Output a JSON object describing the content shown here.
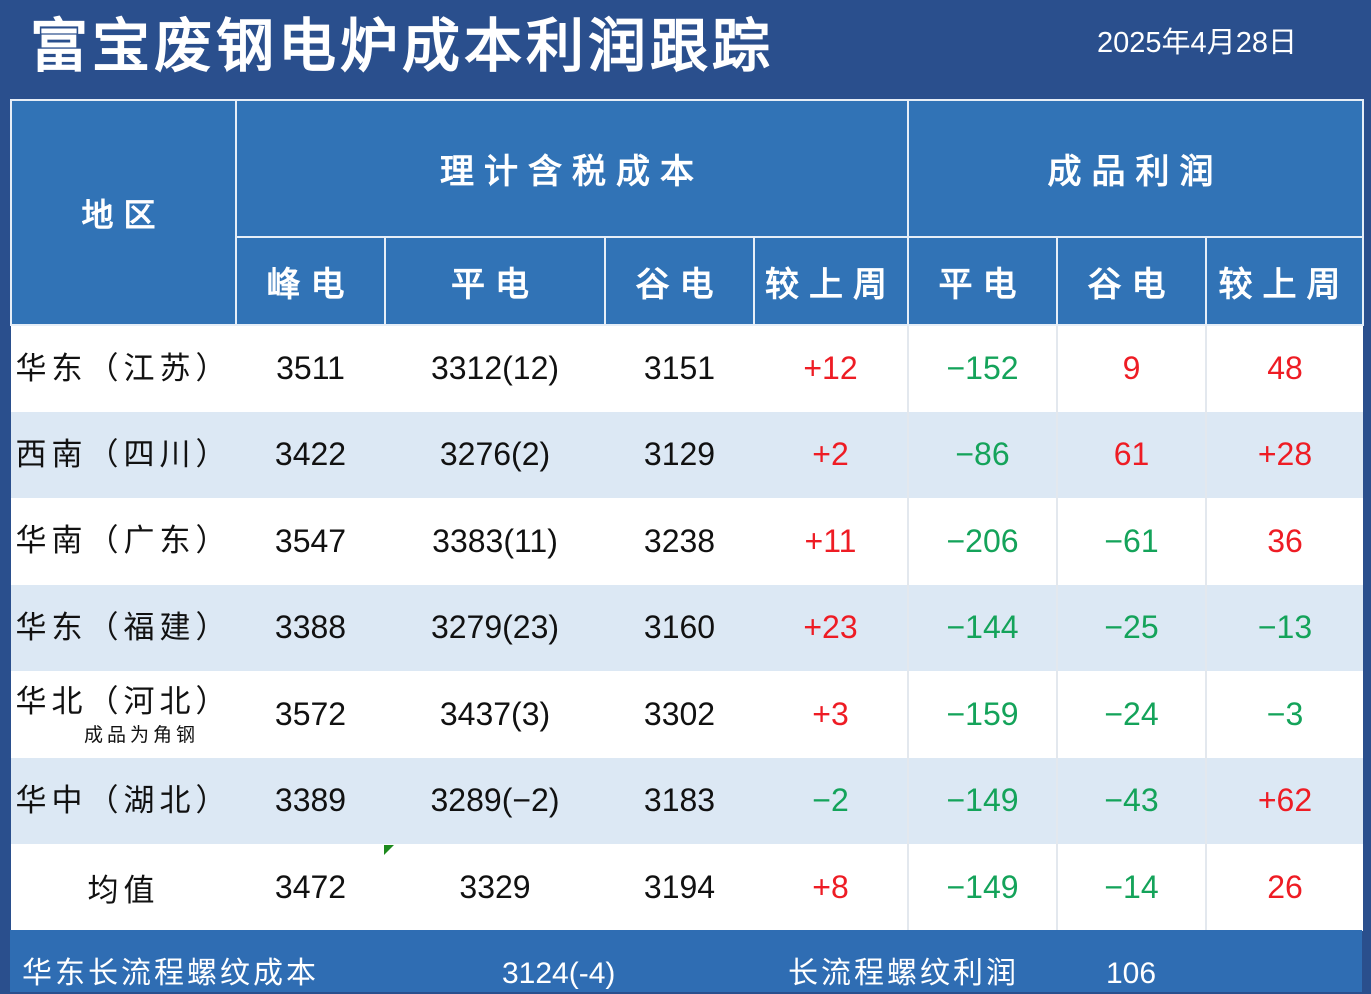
{
  "title": "富宝废钢电炉成本利润跟踪",
  "date": {
    "year": "2025",
    "year_unit": "年",
    "month": "4",
    "month_unit": "月",
    "day": "28",
    "day_unit": "日"
  },
  "headers": {
    "region": "地区",
    "cost_group": "理计含税成本",
    "profit_group": "成品利润",
    "cost_cols": [
      "峰电",
      "平电",
      "谷电",
      "较上周"
    ],
    "profit_cols": [
      "平电",
      "谷电",
      "较上周"
    ]
  },
  "rows": [
    {
      "region": "华东（江苏）",
      "note": "",
      "peak": "3511",
      "flat": "3312(12)",
      "valley": "3151",
      "cost_change": "+12",
      "profit_flat": "-152",
      "profit_valley": "9",
      "profit_change": "48"
    },
    {
      "region": "西南（四川）",
      "note": "",
      "peak": "3422",
      "flat": "3276(2)",
      "valley": "3129",
      "cost_change": "+2",
      "profit_flat": "-86",
      "profit_valley": "61",
      "profit_change": "+28"
    },
    {
      "region": "华南（广东）",
      "note": "",
      "peak": "3547",
      "flat": "3383(11)",
      "valley": "3238",
      "cost_change": "+11",
      "profit_flat": "-206",
      "profit_valley": "-61",
      "profit_change": "36"
    },
    {
      "region": "华东（福建）",
      "note": "",
      "peak": "3388",
      "flat": "3279(23)",
      "valley": "3160",
      "cost_change": "+23",
      "profit_flat": "-144",
      "profit_valley": "-25",
      "profit_change": "-13"
    },
    {
      "region": "华北（河北）",
      "note": "成品为角钢",
      "peak": "3572",
      "flat": "3437(3)",
      "valley": "3302",
      "cost_change": "+3",
      "profit_flat": "-159",
      "profit_valley": "-24",
      "profit_change": "-3"
    },
    {
      "region": "华中（湖北）",
      "note": "",
      "peak": "3389",
      "flat": "3289(-2)",
      "valley": "3183",
      "cost_change": "-2",
      "profit_flat": "-149",
      "profit_valley": "-43",
      "profit_change": "+62"
    }
  ],
  "average": {
    "label": "均值",
    "peak": "3472",
    "flat": "3329",
    "valley": "3194",
    "cost_change": "+8",
    "profit_flat": "-149",
    "profit_valley": "-14",
    "profit_change": "26"
  },
  "footer": {
    "cost_label": "华东长流程螺纹成本",
    "cost_value": "3124(-4)",
    "profit_label": "长流程螺纹利润",
    "profit_value": "106"
  },
  "colors": {
    "background": "#2a4f8d",
    "header": "#3173b6",
    "positive": "#ee1c24",
    "negative": "#14a35a",
    "row_alt": "#dce8f4"
  }
}
